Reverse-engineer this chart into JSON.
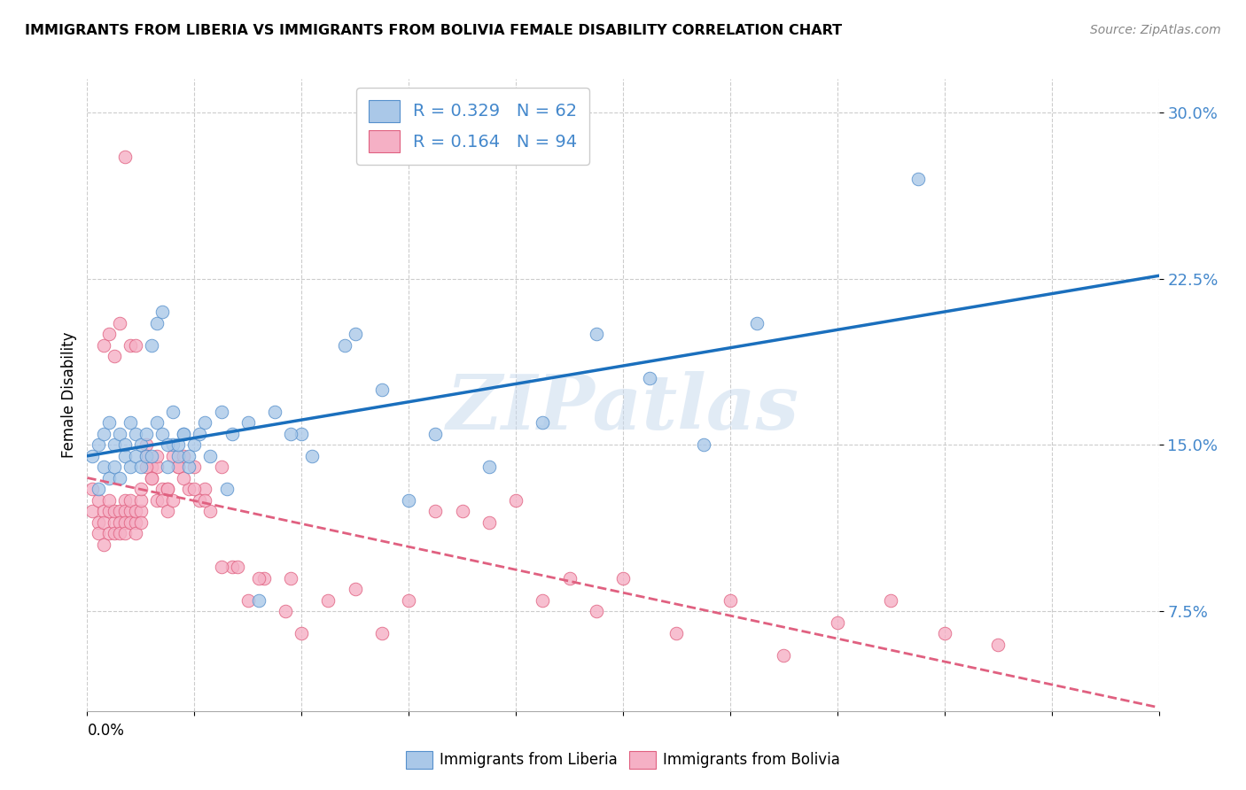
{
  "title": "IMMIGRANTS FROM LIBERIA VS IMMIGRANTS FROM BOLIVIA FEMALE DISABILITY CORRELATION CHART",
  "source": "Source: ZipAtlas.com",
  "ylabel": "Female Disability",
  "ytick_vals": [
    0.075,
    0.15,
    0.225,
    0.3
  ],
  "ytick_labels": [
    "7.5%",
    "15.0%",
    "22.5%",
    "30.0%"
  ],
  "xlim": [
    0.0,
    0.2
  ],
  "ylim": [
    0.03,
    0.315
  ],
  "liberia_R": 0.329,
  "liberia_N": 62,
  "bolivia_R": 0.164,
  "bolivia_N": 94,
  "liberia_color": "#aac8e8",
  "bolivia_color": "#f5b0c5",
  "liberia_edge_color": "#5590cc",
  "bolivia_edge_color": "#e06080",
  "liberia_line_color": "#1a6fbd",
  "bolivia_line_color": "#e06080",
  "tick_label_color": "#4488cc",
  "watermark": "ZIPatlas",
  "background_color": "#ffffff",
  "liberia_x": [
    0.001,
    0.002,
    0.002,
    0.003,
    0.003,
    0.004,
    0.004,
    0.005,
    0.005,
    0.006,
    0.006,
    0.007,
    0.007,
    0.008,
    0.008,
    0.009,
    0.009,
    0.01,
    0.01,
    0.011,
    0.011,
    0.012,
    0.013,
    0.014,
    0.015,
    0.016,
    0.017,
    0.018,
    0.019,
    0.02,
    0.022,
    0.025,
    0.027,
    0.03,
    0.035,
    0.04,
    0.048,
    0.055,
    0.065,
    0.075,
    0.085,
    0.095,
    0.105,
    0.115,
    0.125,
    0.012,
    0.013,
    0.014,
    0.015,
    0.016,
    0.017,
    0.018,
    0.019,
    0.021,
    0.023,
    0.026,
    0.032,
    0.038,
    0.042,
    0.05,
    0.06,
    0.155
  ],
  "liberia_y": [
    0.145,
    0.15,
    0.13,
    0.14,
    0.155,
    0.135,
    0.16,
    0.14,
    0.15,
    0.135,
    0.155,
    0.145,
    0.15,
    0.14,
    0.16,
    0.145,
    0.155,
    0.14,
    0.15,
    0.155,
    0.145,
    0.195,
    0.205,
    0.21,
    0.14,
    0.15,
    0.145,
    0.155,
    0.14,
    0.15,
    0.16,
    0.165,
    0.155,
    0.16,
    0.165,
    0.155,
    0.195,
    0.175,
    0.155,
    0.14,
    0.16,
    0.2,
    0.18,
    0.15,
    0.205,
    0.145,
    0.16,
    0.155,
    0.15,
    0.165,
    0.15,
    0.155,
    0.145,
    0.155,
    0.145,
    0.13,
    0.08,
    0.155,
    0.145,
    0.2,
    0.125,
    0.27
  ],
  "bolivia_x": [
    0.001,
    0.001,
    0.002,
    0.002,
    0.002,
    0.003,
    0.003,
    0.003,
    0.004,
    0.004,
    0.004,
    0.005,
    0.005,
    0.005,
    0.006,
    0.006,
    0.006,
    0.007,
    0.007,
    0.007,
    0.007,
    0.008,
    0.008,
    0.008,
    0.009,
    0.009,
    0.009,
    0.01,
    0.01,
    0.01,
    0.011,
    0.011,
    0.012,
    0.012,
    0.013,
    0.013,
    0.014,
    0.014,
    0.015,
    0.015,
    0.016,
    0.017,
    0.018,
    0.019,
    0.02,
    0.021,
    0.022,
    0.023,
    0.025,
    0.027,
    0.03,
    0.033,
    0.037,
    0.04,
    0.045,
    0.05,
    0.055,
    0.06,
    0.065,
    0.07,
    0.075,
    0.08,
    0.085,
    0.09,
    0.095,
    0.1,
    0.11,
    0.12,
    0.13,
    0.14,
    0.15,
    0.16,
    0.17,
    0.003,
    0.004,
    0.005,
    0.006,
    0.007,
    0.008,
    0.009,
    0.01,
    0.011,
    0.012,
    0.013,
    0.015,
    0.016,
    0.017,
    0.018,
    0.02,
    0.022,
    0.025,
    0.028,
    0.032,
    0.038
  ],
  "bolivia_y": [
    0.13,
    0.12,
    0.125,
    0.115,
    0.11,
    0.12,
    0.115,
    0.105,
    0.12,
    0.11,
    0.125,
    0.115,
    0.12,
    0.11,
    0.12,
    0.115,
    0.11,
    0.125,
    0.12,
    0.115,
    0.11,
    0.12,
    0.115,
    0.125,
    0.115,
    0.12,
    0.11,
    0.12,
    0.115,
    0.125,
    0.15,
    0.145,
    0.14,
    0.135,
    0.125,
    0.14,
    0.13,
    0.125,
    0.12,
    0.13,
    0.145,
    0.14,
    0.145,
    0.13,
    0.14,
    0.125,
    0.13,
    0.12,
    0.14,
    0.095,
    0.08,
    0.09,
    0.075,
    0.065,
    0.08,
    0.085,
    0.065,
    0.08,
    0.12,
    0.12,
    0.115,
    0.125,
    0.08,
    0.09,
    0.075,
    0.09,
    0.065,
    0.08,
    0.055,
    0.07,
    0.08,
    0.065,
    0.06,
    0.195,
    0.2,
    0.19,
    0.205,
    0.28,
    0.195,
    0.195,
    0.13,
    0.14,
    0.135,
    0.145,
    0.13,
    0.125,
    0.14,
    0.135,
    0.13,
    0.125,
    0.095,
    0.095,
    0.09,
    0.09
  ]
}
